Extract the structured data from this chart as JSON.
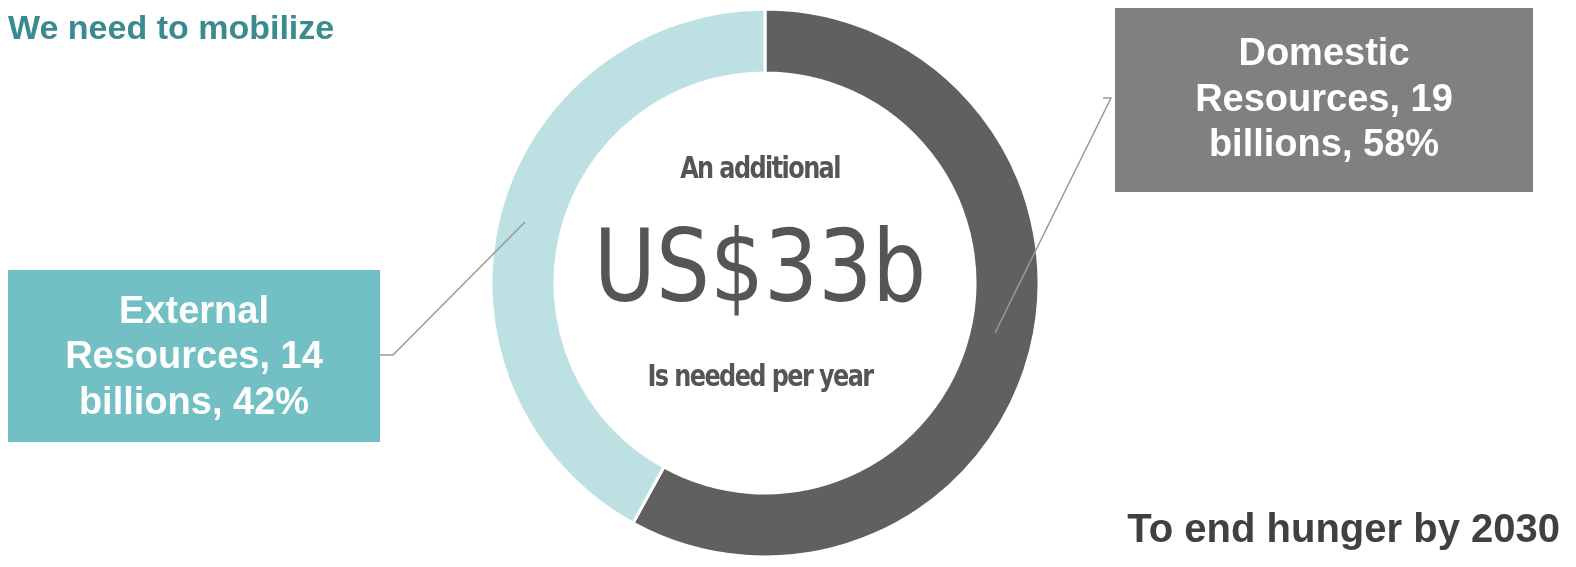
{
  "chart_data": {
    "type": "donut",
    "title": "We need to mobilize",
    "categories": [
      "Domestic Resources, 19 billions, 58%",
      "External Resources, 14 billions, 42%"
    ],
    "values": [
      58,
      42
    ],
    "colors": [
      "#606060",
      "#bde0e3"
    ],
    "annotations": [
      "An additional",
      "US$33b",
      "Is needed per year",
      "To end hunger by 2030"
    ],
    "legend": false
  }
}
